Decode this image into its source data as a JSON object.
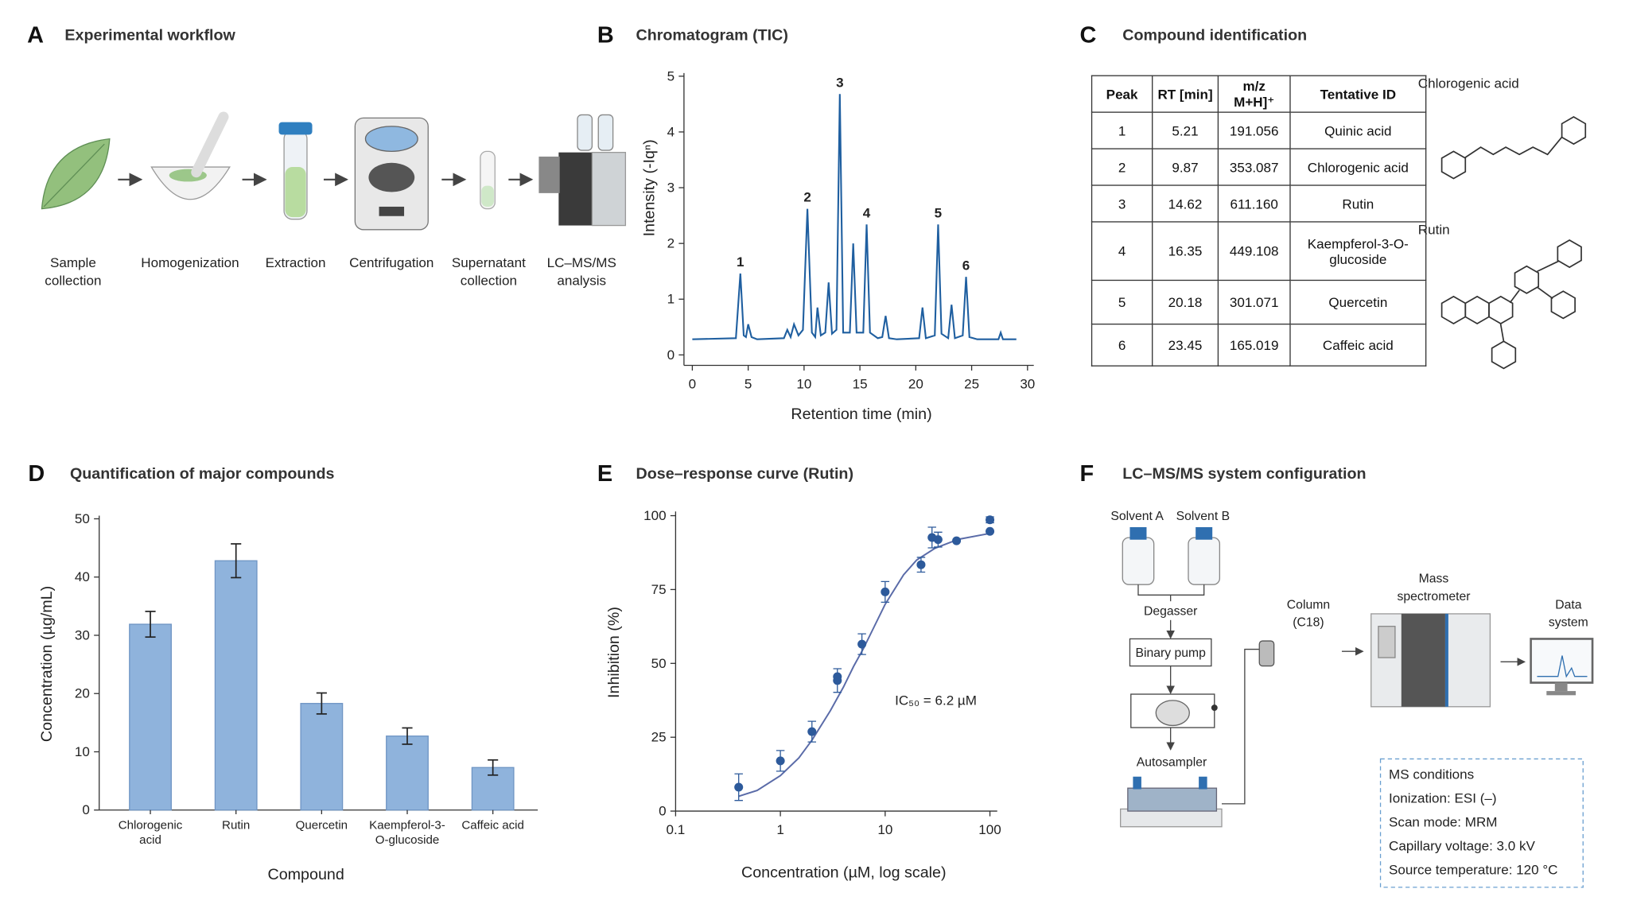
{
  "panel_a": {
    "letter": "A",
    "title": "Experimental workflow",
    "steps": [
      "Sample collection",
      "Homogenization",
      "Extraction",
      "Centrifugation",
      "Supernatant collection",
      "LC–MS/MS analysis"
    ]
  },
  "panel_c": {
    "letter": "C",
    "title": "Compound identification",
    "table": {
      "header": [
        "Peak",
        "RT [min]",
        "m/z M+H]⁺",
        "Tentative ID"
      ],
      "rows": [
        [
          "1",
          "5.21",
          "191.056",
          "Quinic acid"
        ],
        [
          "2",
          "9.87",
          "353.087",
          "Chlorogenic acid"
        ],
        [
          "3",
          "14.62",
          "611.160",
          "Rutin"
        ],
        [
          "4",
          "16.35",
          "449.108",
          "Kaempferol-3-O-glucoside"
        ],
        [
          "5",
          "20.18",
          "301.071",
          "Quercetin"
        ],
        [
          "6",
          "23.45",
          "165.019",
          "Caffeic acid"
        ]
      ]
    },
    "structures": [
      "Chlorogenic acid",
      "Rutin"
    ]
  },
  "panel_f": {
    "letter": "F",
    "title": "LC–MS/MS system configuration",
    "components": [
      "Solvent A",
      "Solvent B",
      "Degasser",
      "Binary pump",
      "Autosampler",
      "Column (C18)",
      "Mass spectrometer",
      "Data system"
    ],
    "ms_conditions": [
      "MS conditions",
      "Ionization: ESI (–)",
      "Scan mode: MRM",
      "Capillary voltage: 3.0 kV",
      "Source temperature: 120 °C"
    ]
  },
  "chart_data": [
    {
      "type": "line",
      "panel_label": "B",
      "title": "Chromatogram (TIC)",
      "xlabel": "Retention time (min)",
      "ylabel": "Intensity (-Iqⁿ)",
      "x": [
        0,
        3.9,
        4.3,
        4.6,
        4.8,
        5.0,
        5.3,
        5.8,
        8.2,
        8.5,
        8.8,
        9.1,
        9.5,
        9.9,
        10.3,
        10.7,
        11.0,
        11.2,
        11.5,
        11.9,
        12.2,
        12.5,
        12.9,
        13.2,
        13.5,
        14.1,
        14.4,
        14.7,
        15.3,
        15.6,
        15.9,
        16.6,
        17.0,
        17.3,
        17.6,
        18.3,
        20.3,
        20.6,
        20.9,
        21.7,
        22.0,
        22.3,
        22.9,
        23.2,
        23.5,
        24.2,
        24.5,
        24.8,
        25.5,
        27.4,
        27.6,
        27.8,
        29
      ],
      "series": [
        {
          "color": "#1f5fa0",
          "values": [
            0.28,
            0.3,
            1.46,
            0.35,
            0.32,
            0.55,
            0.32,
            0.28,
            0.3,
            0.45,
            0.32,
            0.55,
            0.35,
            0.45,
            2.62,
            0.4,
            0.32,
            0.85,
            0.35,
            0.4,
            1.3,
            0.38,
            0.45,
            4.68,
            0.4,
            0.4,
            2.0,
            0.4,
            0.4,
            2.34,
            0.4,
            0.3,
            0.32,
            0.7,
            0.3,
            0.28,
            0.3,
            0.85,
            0.3,
            0.35,
            2.34,
            0.38,
            0.3,
            0.9,
            0.3,
            0.35,
            1.4,
            0.32,
            0.28,
            0.28,
            0.4,
            0.28,
            0.28
          ]
        }
      ],
      "annotations": [
        {
          "text": "1",
          "x": 4.3
        },
        {
          "text": "2",
          "x": 10.3
        },
        {
          "text": "3",
          "x": 13.2
        },
        {
          "text": "4",
          "x": 15.6
        },
        {
          "text": "5",
          "x": 22.0
        },
        {
          "text": "6",
          "x": 24.5
        }
      ],
      "xlim": [
        0,
        30
      ],
      "xticks": [
        0,
        5,
        10,
        15,
        20,
        25,
        30
      ],
      "ylim": [
        0,
        5
      ],
      "yticks": [
        0,
        1,
        2,
        3,
        4,
        5
      ]
    },
    {
      "type": "bar",
      "panel_label": "D",
      "title": "Quantification of major compounds",
      "xlabel": "Compound",
      "ylabel": "Concentration (µg/mL)",
      "categories": [
        "Chlorogenic acid",
        "Rutin",
        "Quercetin",
        "Kaempferol-3-O-glucoside",
        "Caffeic acid"
      ],
      "values": [
        31.9,
        42.8,
        18.3,
        12.7,
        7.3
      ],
      "errors": [
        2.2,
        2.9,
        1.8,
        1.4,
        1.3
      ],
      "color": "#8fb3dc",
      "ylim": [
        0,
        50
      ],
      "yticks": [
        0,
        10,
        20,
        30,
        40,
        50
      ]
    },
    {
      "type": "scatter",
      "panel_label": "E",
      "title": "Dose–response curve (Rutin)",
      "xlabel": "Concentration (µM, log scale)",
      "ylabel": "Inhibition (%)",
      "annotation": "IC₅₀ = 6.2 µM",
      "xscale": "log",
      "points": {
        "color": "#2d5a9b",
        "x": [
          0.4,
          1,
          2,
          3.5,
          3.5,
          6,
          10,
          22,
          28,
          32,
          48,
          100,
          100
        ],
        "values": [
          8.1,
          17,
          26.9,
          44.2,
          45.5,
          56.5,
          74.2,
          83.4,
          92.6,
          91.9,
          91.5,
          94.7,
          98.6
        ],
        "errors": [
          4.5,
          3.5,
          3.5,
          4,
          null,
          3.5,
          3.5,
          2.5,
          3.5,
          2.5,
          null,
          null,
          1
        ]
      },
      "curve": {
        "color": "#5a6ba8",
        "x": [
          0.4,
          0.6,
          1,
          1.5,
          2,
          3,
          4,
          5,
          6.2,
          8,
          10,
          15,
          20,
          30,
          50,
          100
        ],
        "values": [
          5,
          7,
          12,
          18,
          24,
          34,
          42,
          49,
          55,
          63,
          70,
          80,
          85,
          89,
          92,
          94
        ]
      },
      "xlim": [
        0.1,
        100
      ],
      "xticks": [
        0.1,
        1,
        10,
        100
      ],
      "ylim": [
        0,
        100
      ],
      "yticks": [
        0,
        25,
        50,
        75,
        100
      ]
    }
  ]
}
